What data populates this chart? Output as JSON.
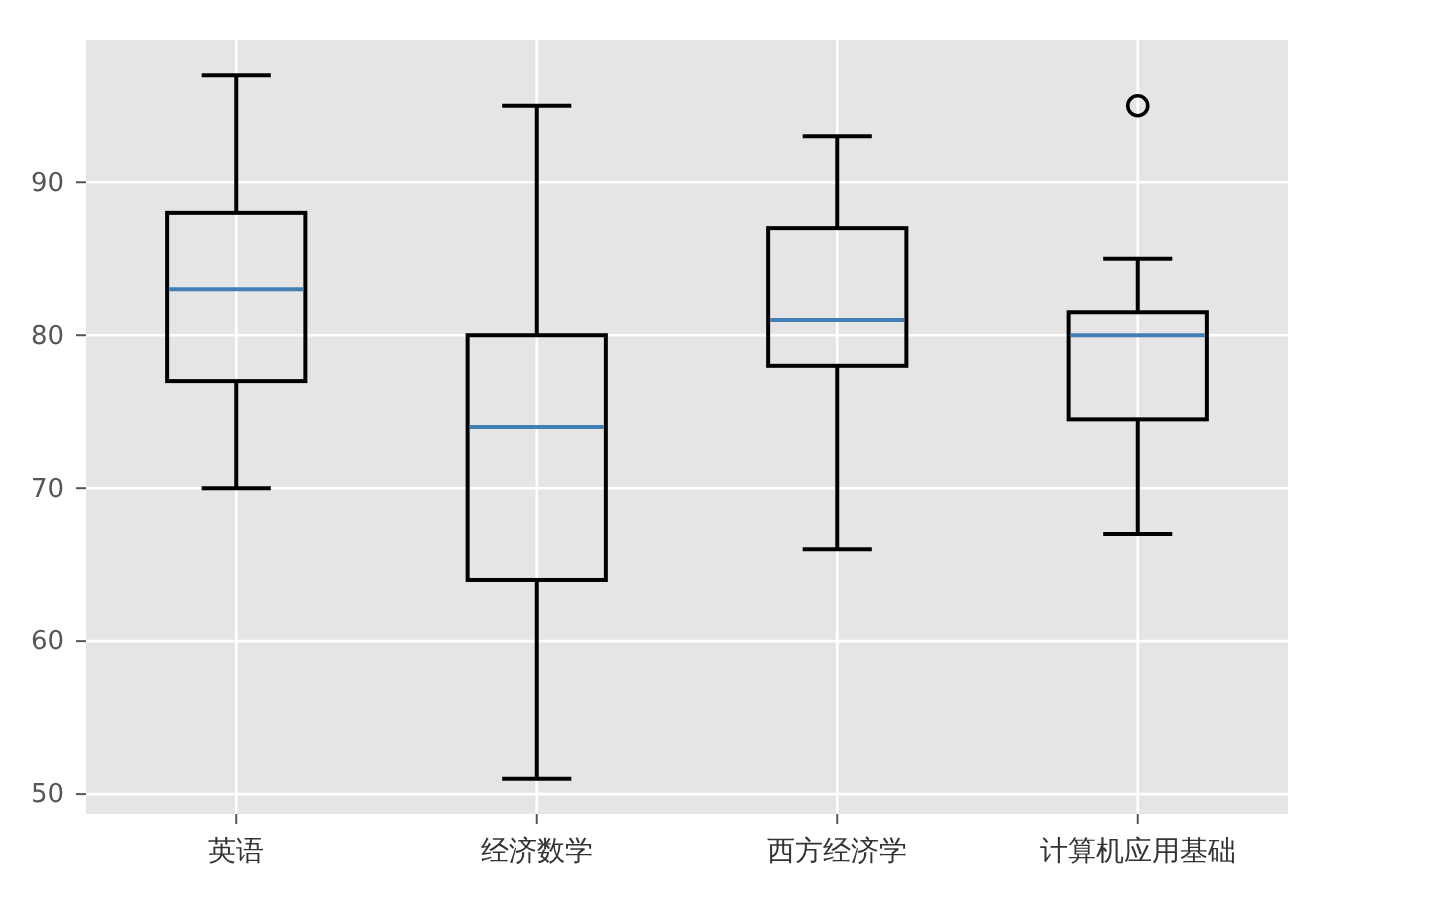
{
  "chart_data": {
    "type": "box",
    "categories": [
      "英语",
      "经济数学",
      "西方经济学",
      "计算机应用基础"
    ],
    "boxes": [
      {
        "low": 70,
        "q1": 77,
        "median": 83,
        "q3": 88,
        "high": 97
      },
      {
        "low": 51,
        "q1": 64,
        "median": 74,
        "q3": 80,
        "high": 95
      },
      {
        "low": 66,
        "q1": 78,
        "median": 81,
        "q3": 87,
        "high": 93
      },
      {
        "low": 67,
        "q1": 74.5,
        "median": 80,
        "q3": 81.5,
        "high": 85,
        "outliers": [
          95
        ]
      }
    ],
    "color": "#000000",
    "ylim": [
      48.7,
      99.3
    ],
    "yticks": [
      50,
      60,
      70,
      80,
      90
    ],
    "grid": true,
    "marker": "circle"
  }
}
